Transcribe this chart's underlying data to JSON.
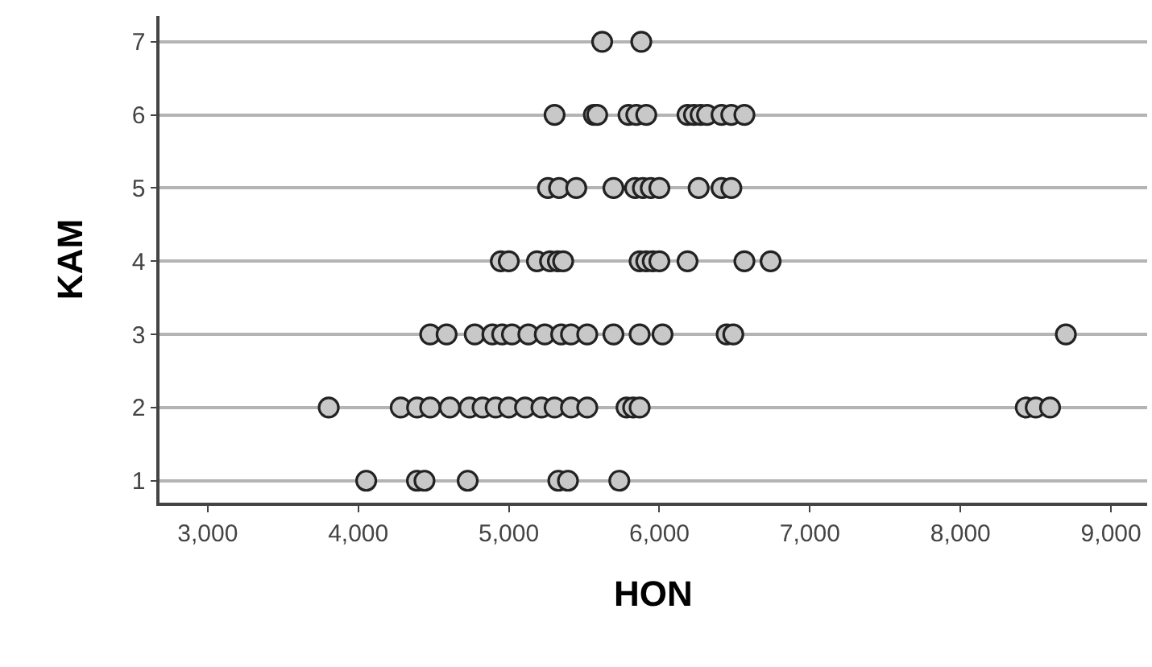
{
  "chart_data": {
    "type": "scatter",
    "xlabel": "HON",
    "ylabel": "KAM",
    "xlim": [
      2680,
      9240
    ],
    "ylim": [
      0.7,
      7.35
    ],
    "xticks": [
      {
        "value": 3000,
        "label": "3,000"
      },
      {
        "value": 4000,
        "label": "4,000"
      },
      {
        "value": 5000,
        "label": "5,000"
      },
      {
        "value": 6000,
        "label": "6,000"
      },
      {
        "value": 7000,
        "label": "7,000"
      },
      {
        "value": 8000,
        "label": "8,000"
      },
      {
        "value": 9000,
        "label": "9,000"
      }
    ],
    "yticks": [
      1,
      2,
      3,
      4,
      5,
      6,
      7
    ],
    "grid": "y",
    "marker": "circle",
    "series": [
      {
        "color": "#c8c8c8",
        "x": [
          5620,
          5880,
          5304,
          5565,
          5587,
          5795,
          5847,
          5913,
          6187,
          6230,
          6274,
          6317,
          6413,
          6478,
          6565,
          5260,
          5334,
          5448,
          5695,
          5839,
          5891,
          5943,
          6000,
          6261,
          6413,
          6478,
          4947,
          5000,
          5187,
          5274,
          5326,
          5361,
          5869,
          5913,
          5956,
          6000,
          6187,
          6565,
          6739,
          4478,
          4587,
          4774,
          4891,
          4956,
          5021,
          5130,
          5239,
          5348,
          5413,
          5521,
          5695,
          5869,
          6021,
          6447,
          6491,
          8700,
          3804,
          4282,
          4391,
          4478,
          4608,
          4739,
          4826,
          4913,
          5000,
          5108,
          5217,
          5304,
          5413,
          5521,
          5782,
          5826,
          5869,
          8434,
          8500,
          8595,
          4053,
          4390,
          4440,
          4727,
          5329,
          5393,
          5734
        ],
        "values": [
          7,
          7,
          6,
          6,
          6,
          6,
          6,
          6,
          6,
          6,
          6,
          6,
          6,
          6,
          6,
          5,
          5,
          5,
          5,
          5,
          5,
          5,
          5,
          5,
          5,
          5,
          4,
          4,
          4,
          4,
          4,
          4,
          4,
          4,
          4,
          4,
          4,
          4,
          4,
          3,
          3,
          3,
          3,
          3,
          3,
          3,
          3,
          3,
          3,
          3,
          3,
          3,
          3,
          3,
          3,
          3,
          2,
          2,
          2,
          2,
          2,
          2,
          2,
          2,
          2,
          2,
          2,
          2,
          2,
          2,
          2,
          2,
          2,
          2,
          2,
          2,
          1,
          1,
          1,
          1,
          1,
          1,
          1
        ]
      }
    ]
  }
}
